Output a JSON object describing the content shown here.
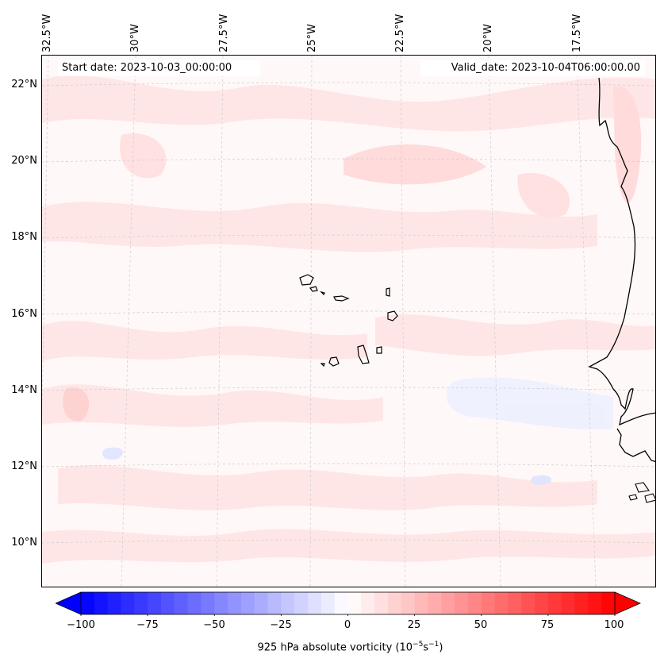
{
  "header": {
    "start_date": "Start date: 2023-10-03_00:00:00",
    "valid_date": "Valid_date: 2023-10-04T06:00:00.00"
  },
  "longitude_labels": [
    "32.5°W",
    "30°W",
    "27.5°W",
    "25°W",
    "22.5°W",
    "20°W",
    "17.5°W"
  ],
  "latitude_labels": [
    "22°N",
    "20°N",
    "18°N",
    "16°N",
    "14°N",
    "12°N",
    "10°N"
  ],
  "colorbar": {
    "ticks": [
      "−100",
      "−75",
      "−50",
      "−25",
      "0",
      "25",
      "50",
      "75",
      "100"
    ],
    "min": -100,
    "max": 100,
    "step": 5,
    "label_text": "925 hPa absolute vorticity (10",
    "label_exp1": "−5",
    "label_mid": "s",
    "label_exp2": "−1",
    "label_end": ")",
    "low_color": "#0000ff",
    "mid_color": "#ffffff",
    "high_color": "#ff0000"
  },
  "map": {
    "background_color": "#fff8f8",
    "coastline_color": "#000000",
    "gridline_color": "#cccccc"
  }
}
